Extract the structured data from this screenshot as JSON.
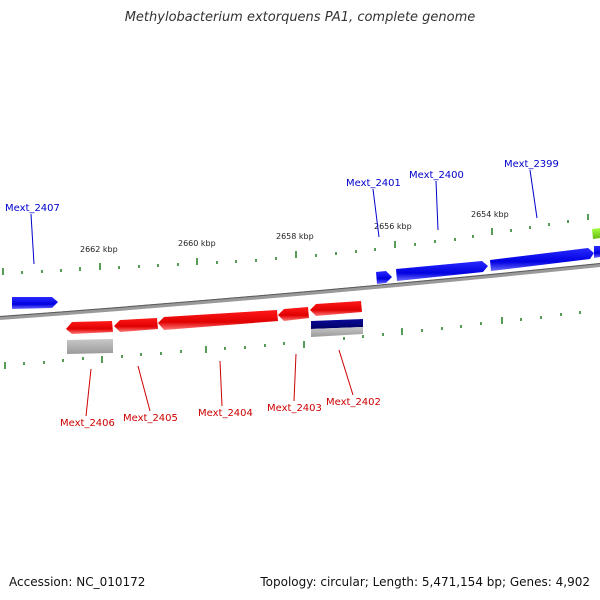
{
  "title": "Methylobacterium extorquens PA1, complete genome",
  "footer": {
    "accession": "Accession: NC_010172",
    "summary": "Topology: circular; Length: 5,471,154 bp; Genes: 4,902"
  },
  "kbp_labels": [
    "2662 kbp",
    "2660 kbp",
    "2658 kbp",
    "2656 kbp",
    "2654 kbp"
  ],
  "genes": [
    {
      "label": "Mext_2407",
      "strand": "forward"
    },
    {
      "label": "Mext_2401",
      "strand": "forward"
    },
    {
      "label": "Mext_2400",
      "strand": "forward"
    },
    {
      "label": "Mext_2399",
      "strand": "forward"
    },
    {
      "label": "Mext_2406",
      "strand": "reverse"
    },
    {
      "label": "Mext_2405",
      "strand": "reverse"
    },
    {
      "label": "Mext_2404",
      "strand": "reverse"
    },
    {
      "label": "Mext_2403",
      "strand": "reverse"
    },
    {
      "label": "Mext_2402",
      "strand": "reverse"
    }
  ],
  "colors": {
    "forward": "#0000ee",
    "reverse": "#ee0000",
    "backbone": "#808080",
    "ticks": "#1f7a1f",
    "rna_dark": "#00008b",
    "rna_grey": "#b0b0b0",
    "edge_gene": "#88dd22"
  }
}
